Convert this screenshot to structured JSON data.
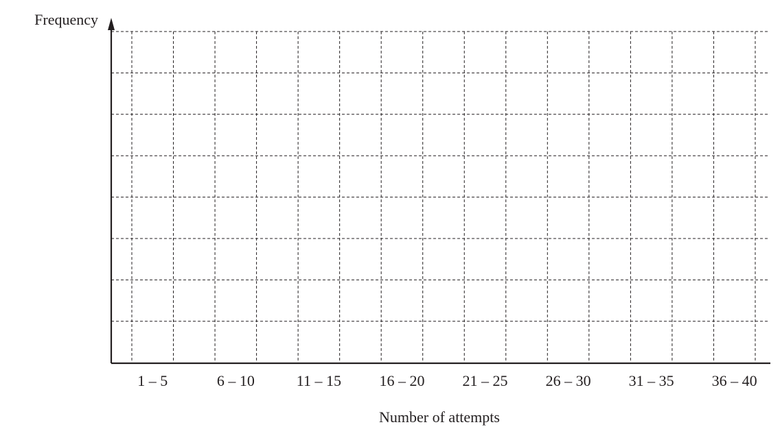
{
  "chart_data": {
    "type": "bar",
    "x_label": "Number of attempts",
    "y_label": "Frequency",
    "categories": [
      "1 – 5",
      "6 – 10",
      "11 – 15",
      "16 – 20",
      "21 – 25",
      "26 – 30",
      "31 – 35",
      "36 – 40"
    ],
    "grid": true
  }
}
